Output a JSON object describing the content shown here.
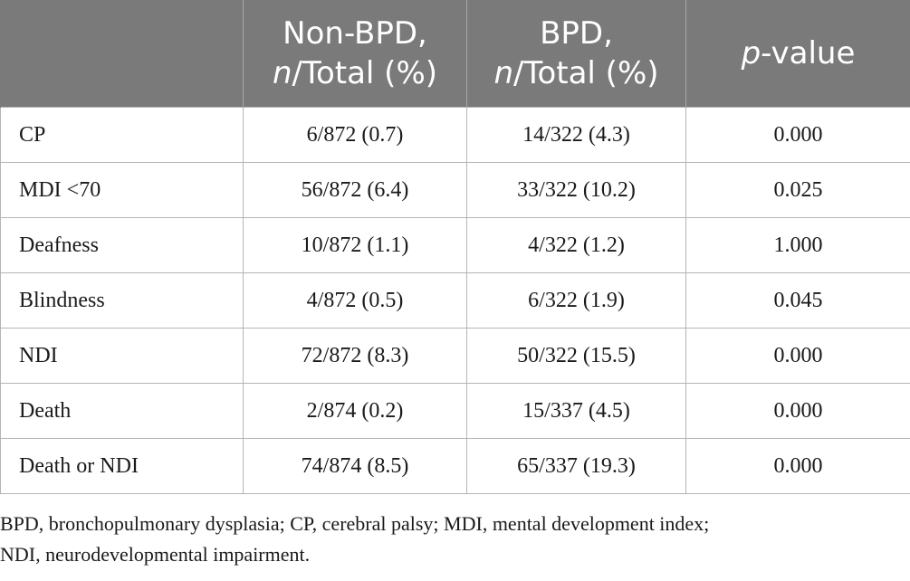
{
  "table": {
    "headers": [
      {
        "line1": "",
        "line2_italic": "",
        "line2_rest": ""
      },
      {
        "line1": "Non-BPD,",
        "line2_italic": "n",
        "line2_rest": "/Total (%)"
      },
      {
        "line1": "BPD,",
        "line2_italic": "n",
        "line2_rest": "/Total (%)"
      },
      {
        "line1_italic": "p",
        "line1_rest": "-value"
      }
    ],
    "rows": [
      {
        "label": "CP",
        "non_bpd": "6/872 (0.7)",
        "bpd": "14/322 (4.3)",
        "p": "0.000"
      },
      {
        "label": "MDI <70",
        "non_bpd": "56/872 (6.4)",
        "bpd": "33/322 (10.2)",
        "p": "0.025"
      },
      {
        "label": "Deafness",
        "non_bpd": "10/872 (1.1)",
        "bpd": "4/322 (1.2)",
        "p": "1.000"
      },
      {
        "label": "Blindness",
        "non_bpd": "4/872 (0.5)",
        "bpd": "6/322 (1.9)",
        "p": "0.045"
      },
      {
        "label": "NDI",
        "non_bpd": "72/872 (8.3)",
        "bpd": "50/322 (15.5)",
        "p": "0.000"
      },
      {
        "label": "Death",
        "non_bpd": "2/874 (0.2)",
        "bpd": "15/337 (4.5)",
        "p": "0.000"
      },
      {
        "label": "Death or NDI",
        "non_bpd": "74/874 (8.5)",
        "bpd": "65/337 (19.3)",
        "p": "0.000"
      }
    ]
  },
  "footnote": {
    "line1": "BPD, bronchopulmonary dysplasia; CP, cerebral palsy; MDI, mental development index;",
    "line2": "NDI, neurodevelopmental impairment."
  },
  "colors": {
    "header_bg": "#7a7a7a",
    "header_text": "#ffffff",
    "border": "#b5b5b5",
    "body_text": "#1a1a1a"
  }
}
